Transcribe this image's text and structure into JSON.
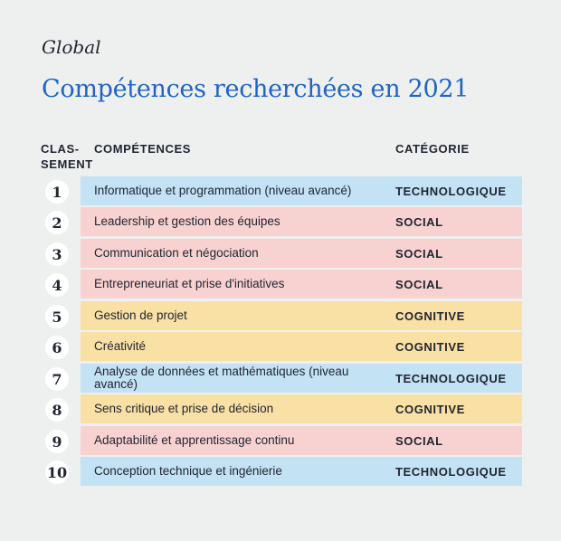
{
  "subtitle": "Global",
  "title": "Compétences recherchées en 2021",
  "headers": {
    "rank": "CLAS-\nSEMENT",
    "competence": "COMPÉTENCES",
    "category": "CATÉGORIE"
  },
  "colors": {
    "title": "#1f63c8",
    "TECHNOLOGIQUE": "#c3e2f4",
    "SOCIAL": "#f8d2d1",
    "COGNITIVE": "#f9e0a4"
  },
  "chart_data": {
    "type": "table",
    "columns": [
      "CLAS-SEMENT",
      "COMPÉTENCES",
      "CATÉGORIE"
    ],
    "rows": [
      {
        "rank": "1",
        "competence": "Informatique et programmation (niveau avancé)",
        "category": "TECHNOLOGIQUE"
      },
      {
        "rank": "2",
        "competence": "Leadership et gestion des équipes",
        "category": "SOCIAL"
      },
      {
        "rank": "3",
        "competence": "Communication et négociation",
        "category": "SOCIAL"
      },
      {
        "rank": "4",
        "competence": "Entrepreneuriat et prise d'initiatives",
        "category": "SOCIAL"
      },
      {
        "rank": "5",
        "competence": "Gestion de projet",
        "category": "COGNITIVE"
      },
      {
        "rank": "6",
        "competence": "Créativité",
        "category": "COGNITIVE"
      },
      {
        "rank": "7",
        "competence": "Analyse de données et mathématiques (niveau avancé)",
        "category": "TECHNOLOGIQUE"
      },
      {
        "rank": "8",
        "competence": "Sens critique et prise de décision",
        "category": "COGNITIVE"
      },
      {
        "rank": "9",
        "competence": "Adaptabilité et apprentissage continu",
        "category": "SOCIAL"
      },
      {
        "rank": "10",
        "competence": "Conception technique et ingénierie",
        "category": "TECHNOLOGIQUE"
      }
    ]
  }
}
